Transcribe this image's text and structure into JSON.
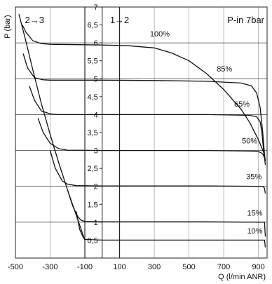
{
  "chart_data": {
    "type": "line",
    "title": "",
    "xlabel": "Q (l/min ANR)",
    "ylabel": "P (bar)",
    "xlim": [
      -500,
      950
    ],
    "ylim": [
      0,
      7
    ],
    "x_ticks": [
      -500,
      -300,
      -100,
      100,
      300,
      500,
      700,
      900
    ],
    "x_tick_labels": [
      "-500",
      "-300",
      "-100",
      "100",
      "300",
      "500",
      "700",
      "900"
    ],
    "y_ticks": [
      0.5,
      1,
      1.5,
      2,
      2.5,
      3,
      3.5,
      4,
      4.5,
      5,
      5.5,
      6,
      6.5,
      7
    ],
    "y_tick_labels": [
      "0,5",
      "1",
      "1,5",
      "2",
      "2,5",
      "3",
      "3,5",
      "4",
      "4,5",
      "5",
      "5,5",
      "6",
      "6,5",
      "7"
    ],
    "grid": true,
    "region_labels": [
      {
        "text": "2→3",
        "x": -390
      },
      {
        "text": "1→2",
        "x": 100
      }
    ],
    "supply_label": "P-in 7bar",
    "series": [
      {
        "name": "100%",
        "label_at": [
          275,
          6.18
        ],
        "x": [
          -460,
          -440,
          -400,
          -350,
          -300,
          0,
          150,
          300,
          400,
          500,
          600,
          700,
          800,
          850,
          900,
          930,
          940
        ],
        "y": [
          6.5,
          6.3,
          6.06,
          5.98,
          5.96,
          5.94,
          5.92,
          5.86,
          5.72,
          5.5,
          5.15,
          4.7,
          4.15,
          3.78,
          3.3,
          2.95,
          2.7
        ]
      },
      {
        "name": "85%",
        "label_at": [
          660,
          5.2
        ],
        "x": [
          -455,
          -430,
          -390,
          -340,
          -300,
          0,
          300,
          600,
          800,
          860,
          890,
          910,
          925,
          935,
          940
        ],
        "y": [
          5.7,
          5.3,
          5.03,
          4.97,
          4.96,
          4.96,
          4.95,
          4.93,
          4.88,
          4.8,
          4.6,
          4.2,
          3.5,
          2.9,
          2.7
        ]
      },
      {
        "name": "65%",
        "label_at": [
          760,
          4.22
        ],
        "x": [
          -420,
          -390,
          -350,
          -300,
          -250,
          0,
          300,
          600,
          850,
          890,
          910,
          920,
          930,
          940
        ],
        "y": [
          4.8,
          4.4,
          4.1,
          4.02,
          4.0,
          4.0,
          4.0,
          4.0,
          3.98,
          3.94,
          3.8,
          3.5,
          3.0,
          2.7
        ]
      },
      {
        "name": "50%",
        "label_at": [
          805,
          3.2
        ],
        "x": [
          -370,
          -340,
          -300,
          -250,
          -200,
          0,
          300,
          600,
          880,
          910,
          925,
          935,
          940
        ],
        "y": [
          3.9,
          3.5,
          3.2,
          3.05,
          3.01,
          3.0,
          3.0,
          3.0,
          2.98,
          2.95,
          2.9,
          2.8,
          2.6
        ]
      },
      {
        "name": "35%",
        "label_at": [
          830,
          2.2
        ],
        "x": [
          -300,
          -270,
          -230,
          -200,
          -150,
          0,
          300,
          600,
          900,
          925,
          935,
          940
        ],
        "y": [
          3.0,
          2.5,
          2.15,
          2.06,
          2.02,
          2.01,
          2.01,
          2.01,
          2.0,
          2.0,
          1.95,
          1.8
        ]
      },
      {
        "name": "15%",
        "label_at": [
          835,
          1.18
        ],
        "x": [
          -200,
          -170,
          -140,
          -120,
          -100,
          0,
          300,
          600,
          900,
          935,
          940
        ],
        "y": [
          1.9,
          1.45,
          1.15,
          1.05,
          1.02,
          1.01,
          1.01,
          1.01,
          1.0,
          1.0,
          0.6
        ]
      },
      {
        "name": "10%",
        "label_at": [
          835,
          0.68
        ],
        "x": [
          -150,
          -130,
          -110,
          -100,
          0,
          300,
          600,
          900,
          935,
          940
        ],
        "y": [
          1.3,
          0.8,
          0.58,
          0.52,
          0.5,
          0.5,
          0.5,
          0.5,
          0.5,
          0.3
        ]
      },
      {
        "name": "",
        "x": [
          -480,
          -440,
          -400,
          -350,
          -300,
          -250,
          -200,
          -150,
          -100
        ],
        "y": [
          6.8,
          6.05,
          5.25,
          4.3,
          3.45,
          2.65,
          1.9,
          1.2,
          0.5
        ]
      }
    ]
  }
}
